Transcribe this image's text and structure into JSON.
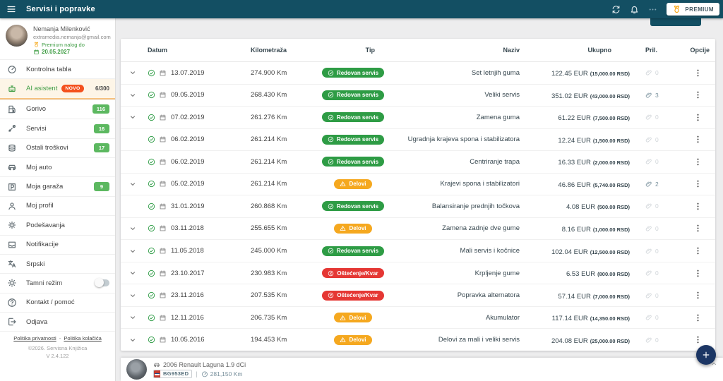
{
  "app_bar": {
    "title": "Servisi i popravke",
    "premium_label": "PREMIUM"
  },
  "profile": {
    "name": "Nemanja Milenković",
    "email": "extramedia.nemanja@gmail.com",
    "premium_text": "Premium nalog do",
    "premium_until": "20.05.2027"
  },
  "sidebar": {
    "items": [
      {
        "id": "kontrolna-tabla",
        "icon": "dashboard",
        "label": "Kontrolna tabla"
      },
      {
        "id": "ai-asistent",
        "icon": "robot",
        "label": "AI asistent",
        "tag": "NOVO",
        "right_text": "6/300",
        "highlight": true
      },
      {
        "id": "gorivo",
        "icon": "fuel",
        "label": "Gorivo",
        "badge": "116"
      },
      {
        "id": "servisi",
        "icon": "tools",
        "label": "Servisi",
        "badge": "16"
      },
      {
        "id": "ostali-troskovi",
        "icon": "coins",
        "label": "Ostali troškovi",
        "badge": "17"
      },
      {
        "id": "moj-auto",
        "icon": "car",
        "label": "Moj auto"
      },
      {
        "id": "moja-garaza",
        "icon": "parking",
        "label": "Moja garaža",
        "badge": "9"
      },
      {
        "id": "moj-profil",
        "icon": "person",
        "label": "Moj profil"
      },
      {
        "id": "podesavanja",
        "icon": "gear",
        "label": "Podešavanja"
      },
      {
        "id": "notifikacije",
        "icon": "inbox",
        "label": "Notifikacije"
      },
      {
        "id": "srpski",
        "icon": "translate",
        "label": "Srpski"
      },
      {
        "id": "tamni-rezim",
        "icon": "sun",
        "label": "Tamni režim",
        "toggle": "off"
      },
      {
        "id": "kontakt-pomoc",
        "icon": "help",
        "label": "Kontakt / pomoć"
      },
      {
        "id": "odjava",
        "icon": "logout",
        "label": "Odjava"
      }
    ],
    "footer_links": [
      "Politika privatnosti",
      "Politika kolačića"
    ],
    "footer_separator": "-",
    "copyright": "©2026. Servisna Knjižica",
    "version": "V 2.4.122"
  },
  "table": {
    "headers": [
      "Datum",
      "Kilometraža",
      "Tip",
      "Naziv",
      "Ukupno",
      "Pril.",
      "Opcije"
    ],
    "badge_types": {
      "redovan": {
        "label": "Redovan servis",
        "color": "#2e9c45",
        "icon": "checkCircle"
      },
      "delovi": {
        "label": "Delovi",
        "color": "#f5a81f",
        "icon": "warning"
      },
      "kvar": {
        "label": "Oštećenje/Kvar",
        "color": "#e53734",
        "icon": "crossCircle"
      }
    },
    "rows": [
      {
        "expand": true,
        "date": "13.07.2019",
        "km": "274.900 Km",
        "type": "redovan",
        "naziv": "Set letnjih guma",
        "eur_text": "122.45 EUR",
        "rsd_text": "(15,000.00 RSD)",
        "attachments": 0
      },
      {
        "expand": true,
        "date": "09.05.2019",
        "km": "268.430 Km",
        "type": "redovan",
        "naziv": "Veliki servis",
        "eur_text": "351.02 EUR",
        "rsd_text": "(43,000.00 RSD)",
        "attachments": 3
      },
      {
        "expand": true,
        "date": "07.02.2019",
        "km": "261.276 Km",
        "type": "redovan",
        "naziv": "Zamena guma",
        "eur_text": "61.22 EUR",
        "rsd_text": "(7,500.00 RSD)",
        "attachments": 0
      },
      {
        "expand": false,
        "date": "06.02.2019",
        "km": "261.214 Km",
        "type": "redovan",
        "naziv": "Ugradnja krajeva spona i stabilizatora",
        "eur_text": "12.24 EUR",
        "rsd_text": "(1,500.00 RSD)",
        "attachments": 0
      },
      {
        "expand": false,
        "date": "06.02.2019",
        "km": "261.214 Km",
        "type": "redovan",
        "naziv": "Centriranje trapa",
        "eur_text": "16.33 EUR",
        "rsd_text": "(2,000.00 RSD)",
        "attachments": 0
      },
      {
        "expand": true,
        "date": "05.02.2019",
        "km": "261.214 Km",
        "type": "delovi",
        "naziv": "Krajevi spona i stabilizatori",
        "eur_text": "46.86 EUR",
        "rsd_text": "(5,740.00 RSD)",
        "attachments": 2
      },
      {
        "expand": false,
        "date": "31.01.2019",
        "km": "260.868 Km",
        "type": "redovan",
        "naziv": "Balansiranje prednjih točkova",
        "eur_text": "4.08 EUR",
        "rsd_text": "(500.00 RSD)",
        "attachments": 0
      },
      {
        "expand": true,
        "date": "03.11.2018",
        "km": "255.655 Km",
        "type": "delovi",
        "naziv": "Zamena zadnje dve gume",
        "eur_text": "8.16 EUR",
        "rsd_text": "(1,000.00 RSD)",
        "attachments": 0
      },
      {
        "expand": true,
        "date": "11.05.2018",
        "km": "245.000 Km",
        "type": "redovan",
        "naziv": "Mali servis i kočnice",
        "eur_text": "102.04 EUR",
        "rsd_text": "(12,500.00 RSD)",
        "attachments": 0
      },
      {
        "expand": true,
        "date": "23.10.2017",
        "km": "230.983 Km",
        "type": "kvar",
        "naziv": "Krpljenje gume",
        "eur_text": "6.53 EUR",
        "rsd_text": "(800.00 RSD)",
        "attachments": 0
      },
      {
        "expand": true,
        "date": "23.11.2016",
        "km": "207.535 Km",
        "type": "kvar",
        "naziv": "Popravka alternatora",
        "eur_text": "57.14 EUR",
        "rsd_text": "(7,000.00 RSD)",
        "attachments": 0
      },
      {
        "expand": true,
        "date": "12.11.2016",
        "km": "206.735 Km",
        "type": "delovi",
        "naziv": "Akumulator",
        "eur_text": "117.14 EUR",
        "rsd_text": "(14,350.00 RSD)",
        "attachments": 0
      },
      {
        "expand": true,
        "date": "10.05.2016",
        "km": "194.453 Km",
        "type": "delovi",
        "naziv": "Delovi za mali i veliki servis",
        "eur_text": "204.08 EUR",
        "rsd_text": "(25,000.00 RSD)",
        "attachments": 0
      }
    ]
  },
  "bottom_bar": {
    "car_title": "2006 Renault Laguna 1.9 dCi",
    "plate": "BG953ED",
    "odometer": "281,150 Km"
  },
  "colors": {
    "appbar": "#134f63",
    "green": "#2e9c45",
    "sidebar_badge": "#5cb860",
    "novo": "#f4511e",
    "delovi": "#f5a81f",
    "kvar": "#e53734",
    "fab": "#1c3664",
    "medal": "#f59f00"
  }
}
